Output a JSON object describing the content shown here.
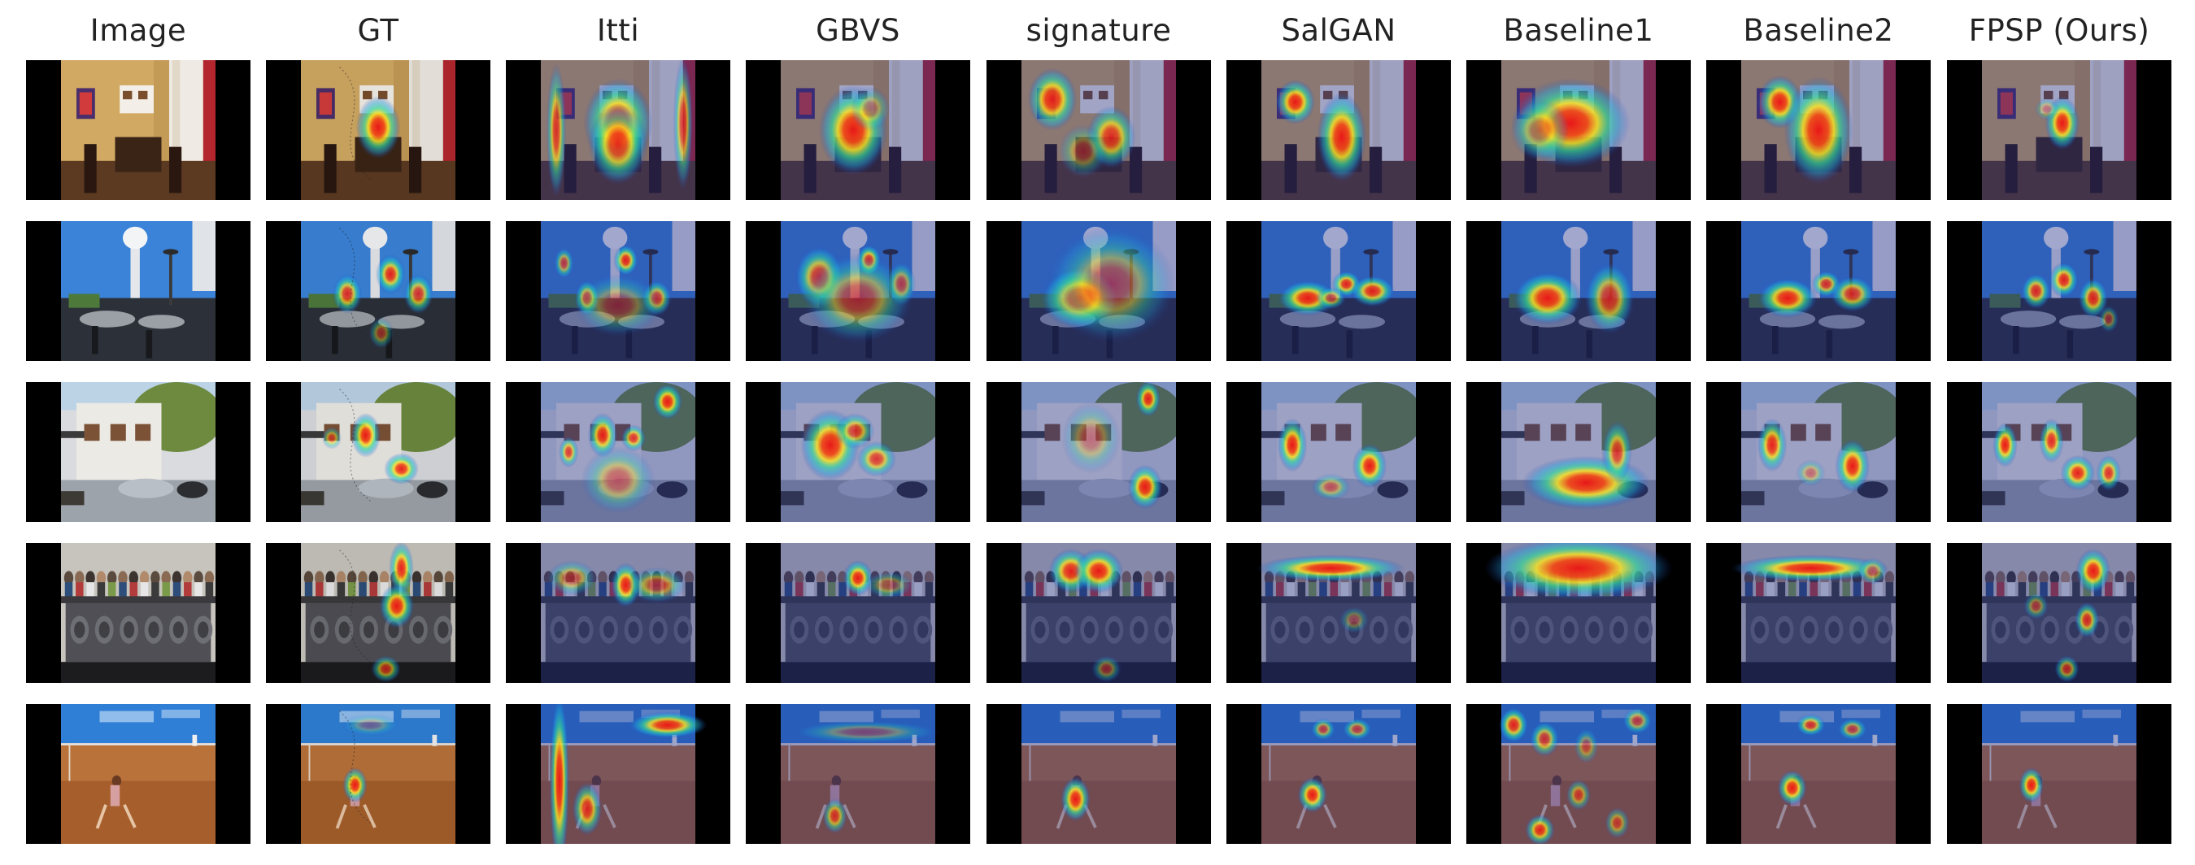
{
  "figure": {
    "columns": [
      {
        "label": "Image",
        "kind": "image"
      },
      {
        "label": "GT",
        "kind": "gt"
      },
      {
        "label": "Itti",
        "kind": "map"
      },
      {
        "label": "GBVS",
        "kind": "map"
      },
      {
        "label": "signature",
        "kind": "map"
      },
      {
        "label": "SalGAN",
        "kind": "map"
      },
      {
        "label": "Baseline1",
        "kind": "map"
      },
      {
        "label": "Baseline2",
        "kind": "map"
      },
      {
        "label": "FPSP (Ours)",
        "kind": "map"
      }
    ],
    "rows": [
      {
        "scene": "dining-room",
        "photo": {
          "letterbox": "pillarbox",
          "palette": [
            "#caa05a",
            "#7a4e2c",
            "#e9e2d6",
            "#3a2416"
          ],
          "description_tags": [
            "room",
            "window",
            "chairs",
            "painting"
          ]
        },
        "heatmaps": [
          [],
          [
            [
              0.5,
              0.48,
              0.09,
              0.14,
              1.0
            ]
          ],
          [
            [
              0.5,
              0.45,
              0.14,
              0.2,
              1.0
            ],
            [
              0.5,
              0.6,
              0.12,
              0.18,
              0.9
            ],
            [
              0.1,
              0.5,
              0.04,
              0.3,
              0.8
            ],
            [
              0.92,
              0.45,
              0.04,
              0.3,
              0.75
            ]
          ],
          [
            [
              0.47,
              0.5,
              0.14,
              0.2,
              1.0
            ],
            [
              0.58,
              0.35,
              0.08,
              0.1,
              0.5
            ]
          ],
          [
            [
              0.2,
              0.28,
              0.1,
              0.14,
              0.95
            ],
            [
              0.58,
              0.55,
              0.1,
              0.14,
              0.85
            ],
            [
              0.4,
              0.65,
              0.1,
              0.12,
              0.45
            ]
          ],
          [
            [
              0.22,
              0.3,
              0.08,
              0.1,
              1.0
            ],
            [
              0.52,
              0.55,
              0.1,
              0.2,
              1.0
            ]
          ],
          [
            [
              0.45,
              0.45,
              0.24,
              0.2,
              1.0
            ],
            [
              0.25,
              0.5,
              0.12,
              0.14,
              0.55
            ]
          ],
          [
            [
              0.25,
              0.3,
              0.09,
              0.12,
              1.0
            ],
            [
              0.5,
              0.5,
              0.14,
              0.24,
              1.0
            ]
          ],
          [
            [
              0.52,
              0.45,
              0.07,
              0.12,
              1.0
            ],
            [
              0.42,
              0.35,
              0.05,
              0.05,
              0.4
            ]
          ]
        ]
      },
      {
        "scene": "restaurant-patio",
        "photo": {
          "letterbox": "pillarbox",
          "palette": [
            "#3b7bd1",
            "#d8dde4",
            "#2a2e36",
            "#6a6f75"
          ],
          "description_tags": [
            "sky",
            "umbrella",
            "tables",
            "chairs"
          ]
        },
        "heatmaps": [
          [],
          [
            [
              0.3,
              0.52,
              0.06,
              0.09,
              0.9
            ],
            [
              0.58,
              0.38,
              0.06,
              0.09,
              0.95
            ],
            [
              0.76,
              0.52,
              0.06,
              0.09,
              0.85
            ],
            [
              0.52,
              0.8,
              0.05,
              0.07,
              0.5
            ]
          ],
          [
            [
              0.55,
              0.28,
              0.05,
              0.07,
              0.95
            ],
            [
              0.3,
              0.55,
              0.05,
              0.08,
              0.9
            ],
            [
              0.75,
              0.55,
              0.06,
              0.08,
              0.8
            ],
            [
              0.15,
              0.3,
              0.04,
              0.07,
              0.7
            ],
            [
              0.5,
              0.6,
              0.18,
              0.14,
              0.45
            ]
          ],
          [
            [
              0.57,
              0.28,
              0.05,
              0.07,
              0.95
            ],
            [
              0.25,
              0.4,
              0.1,
              0.14,
              0.85
            ],
            [
              0.5,
              0.55,
              0.22,
              0.2,
              0.6
            ],
            [
              0.78,
              0.45,
              0.06,
              0.1,
              0.65
            ]
          ],
          [
            [
              0.38,
              0.55,
              0.16,
              0.14,
              1.0
            ],
            [
              0.58,
              0.45,
              0.26,
              0.26,
              0.55
            ]
          ],
          [
            [
              0.3,
              0.55,
              0.12,
              0.08,
              1.0
            ],
            [
              0.55,
              0.45,
              0.06,
              0.06,
              0.95
            ],
            [
              0.72,
              0.5,
              0.09,
              0.07,
              0.95
            ],
            [
              0.45,
              0.55,
              0.06,
              0.05,
              0.7
            ]
          ],
          [
            [
              0.3,
              0.55,
              0.14,
              0.12,
              1.0
            ],
            [
              0.7,
              0.55,
              0.1,
              0.16,
              0.8
            ]
          ],
          [
            [
              0.3,
              0.55,
              0.12,
              0.09,
              1.0
            ],
            [
              0.55,
              0.45,
              0.06,
              0.06,
              0.85
            ],
            [
              0.72,
              0.52,
              0.09,
              0.08,
              0.85
            ]
          ],
          [
            [
              0.35,
              0.5,
              0.06,
              0.08,
              0.9
            ],
            [
              0.53,
              0.42,
              0.06,
              0.08,
              0.95
            ],
            [
              0.72,
              0.55,
              0.06,
              0.09,
              0.9
            ],
            [
              0.82,
              0.7,
              0.04,
              0.06,
              0.5
            ]
          ]
        ]
      },
      {
        "scene": "street-storefront",
        "photo": {
          "letterbox": "pillarbox",
          "palette": [
            "#7e8f6a",
            "#e4e0d8",
            "#9aa2ad",
            "#3d3a35"
          ],
          "description_tags": [
            "building",
            "trees",
            "cars",
            "street"
          ]
        },
        "heatmaps": [
          [],
          [
            [
              0.42,
              0.38,
              0.06,
              0.1,
              1.0
            ],
            [
              0.65,
              0.62,
              0.07,
              0.07,
              0.95
            ],
            [
              0.2,
              0.4,
              0.04,
              0.05,
              0.6
            ]
          ],
          [
            [
              0.82,
              0.14,
              0.06,
              0.08,
              1.0
            ],
            [
              0.4,
              0.38,
              0.06,
              0.1,
              0.95
            ],
            [
              0.6,
              0.4,
              0.05,
              0.06,
              0.85
            ],
            [
              0.18,
              0.5,
              0.04,
              0.07,
              0.8
            ],
            [
              0.5,
              0.7,
              0.15,
              0.15,
              0.5
            ]
          ],
          [
            [
              0.32,
              0.45,
              0.12,
              0.16,
              1.0
            ],
            [
              0.48,
              0.35,
              0.08,
              0.08,
              0.8
            ],
            [
              0.62,
              0.55,
              0.08,
              0.08,
              0.8
            ]
          ],
          [
            [
              0.82,
              0.12,
              0.05,
              0.08,
              0.95
            ],
            [
              0.8,
              0.75,
              0.07,
              0.1,
              1.0
            ],
            [
              0.45,
              0.4,
              0.12,
              0.16,
              0.4
            ]
          ],
          [
            [
              0.2,
              0.45,
              0.06,
              0.12,
              1.0
            ],
            [
              0.7,
              0.6,
              0.07,
              0.1,
              1.0
            ],
            [
              0.45,
              0.75,
              0.08,
              0.06,
              0.55
            ]
          ],
          [
            [
              0.55,
              0.72,
              0.26,
              0.12,
              1.0
            ],
            [
              0.75,
              0.5,
              0.06,
              0.14,
              0.8
            ]
          ],
          [
            [
              0.2,
              0.45,
              0.06,
              0.12,
              0.95
            ],
            [
              0.72,
              0.6,
              0.07,
              0.12,
              1.0
            ],
            [
              0.45,
              0.65,
              0.06,
              0.06,
              0.45
            ]
          ],
          [
            [
              0.15,
              0.45,
              0.05,
              0.1,
              1.0
            ],
            [
              0.45,
              0.42,
              0.05,
              0.1,
              0.9
            ],
            [
              0.62,
              0.65,
              0.07,
              0.08,
              0.95
            ],
            [
              0.82,
              0.65,
              0.05,
              0.08,
              0.85
            ]
          ]
        ]
      },
      {
        "scene": "crowd-balcony",
        "photo": {
          "letterbox": "pillarbox",
          "palette": [
            "#c9c6bf",
            "#5b4a3e",
            "#2a2a2e",
            "#7c7d82"
          ],
          "description_tags": [
            "people",
            "railing",
            "ornate balcony"
          ]
        },
        "heatmaps": [
          [],
          [
            [
              0.65,
              0.18,
              0.05,
              0.12,
              0.95
            ],
            [
              0.62,
              0.45,
              0.07,
              0.1,
              1.0
            ],
            [
              0.55,
              0.9,
              0.06,
              0.06,
              0.7
            ]
          ],
          [
            [
              0.55,
              0.3,
              0.06,
              0.1,
              1.0
            ],
            [
              0.2,
              0.25,
              0.1,
              0.08,
              0.55
            ],
            [
              0.75,
              0.3,
              0.12,
              0.08,
              0.6
            ]
          ],
          [
            [
              0.5,
              0.25,
              0.06,
              0.08,
              1.0
            ],
            [
              0.7,
              0.3,
              0.1,
              0.06,
              0.45
            ]
          ],
          [
            [
              0.32,
              0.2,
              0.09,
              0.1,
              0.95
            ],
            [
              0.5,
              0.2,
              0.1,
              0.1,
              1.0
            ],
            [
              0.55,
              0.9,
              0.06,
              0.06,
              0.5
            ]
          ],
          [
            [
              0.45,
              0.18,
              0.3,
              0.06,
              1.0
            ],
            [
              0.6,
              0.55,
              0.06,
              0.06,
              0.4
            ]
          ],
          [
            [
              0.5,
              0.18,
              0.38,
              0.14,
              1.0
            ]
          ],
          [
            [
              0.45,
              0.18,
              0.32,
              0.06,
              1.0
            ],
            [
              0.85,
              0.2,
              0.06,
              0.06,
              0.6
            ]
          ],
          [
            [
              0.72,
              0.2,
              0.07,
              0.1,
              1.0
            ],
            [
              0.35,
              0.45,
              0.05,
              0.06,
              0.55
            ],
            [
              0.68,
              0.55,
              0.05,
              0.08,
              0.85
            ],
            [
              0.55,
              0.9,
              0.05,
              0.06,
              0.7
            ]
          ]
        ]
      },
      {
        "scene": "tennis-court",
        "photo": {
          "letterbox": "pillarbox",
          "palette": [
            "#2f7fd6",
            "#c07a3c",
            "#9a5a28",
            "#f2f2f2"
          ],
          "description_tags": [
            "player",
            "clay court",
            "banner"
          ]
        },
        "heatmaps": [
          [],
          [
            [
              0.35,
              0.58,
              0.05,
              0.08,
              1.0
            ],
            [
              0.45,
              0.15,
              0.12,
              0.05,
              0.3
            ]
          ],
          [
            [
              0.12,
              0.55,
              0.04,
              0.4,
              1.0
            ],
            [
              0.82,
              0.15,
              0.16,
              0.06,
              1.0
            ],
            [
              0.3,
              0.75,
              0.06,
              0.12,
              0.85
            ]
          ],
          [
            [
              0.35,
              0.8,
              0.05,
              0.08,
              0.75
            ],
            [
              0.55,
              0.2,
              0.3,
              0.05,
              0.4
            ]
          ],
          [
            [
              0.35,
              0.68,
              0.06,
              0.1,
              1.0
            ]
          ],
          [
            [
              0.33,
              0.65,
              0.06,
              0.08,
              1.0
            ],
            [
              0.4,
              0.18,
              0.05,
              0.05,
              0.7
            ],
            [
              0.62,
              0.18,
              0.06,
              0.05,
              0.7
            ]
          ],
          [
            [
              0.08,
              0.15,
              0.06,
              0.08,
              0.95
            ],
            [
              0.28,
              0.25,
              0.06,
              0.08,
              0.8
            ],
            [
              0.55,
              0.3,
              0.05,
              0.08,
              0.5
            ],
            [
              0.88,
              0.12,
              0.06,
              0.06,
              0.7
            ],
            [
              0.25,
              0.9,
              0.06,
              0.07,
              0.9
            ],
            [
              0.5,
              0.65,
              0.05,
              0.07,
              0.65
            ],
            [
              0.75,
              0.85,
              0.05,
              0.07,
              0.6
            ]
          ],
          [
            [
              0.33,
              0.6,
              0.06,
              0.08,
              1.0
            ],
            [
              0.45,
              0.15,
              0.06,
              0.05,
              0.85
            ],
            [
              0.72,
              0.18,
              0.06,
              0.05,
              0.7
            ]
          ],
          [
            [
              0.32,
              0.58,
              0.05,
              0.08,
              1.0
            ]
          ]
        ]
      }
    ]
  }
}
